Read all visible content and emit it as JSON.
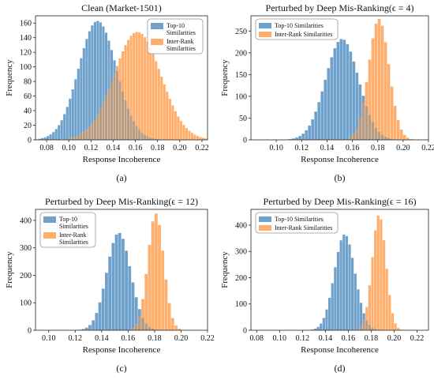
{
  "colors": {
    "top10": "#6fa1cd",
    "inter": "#ffae6b",
    "overlap": "#b89a7e"
  },
  "chart_data": [
    {
      "type": "histogram",
      "title": "Clean (Market-1501)",
      "xlabel": "Response Incoherence",
      "ylabel": "Frequency",
      "caption": "(a)",
      "xlim": [
        0.07,
        0.225
      ],
      "ylim": [
        0,
        170
      ],
      "xticks": [
        "0.08",
        "0.10",
        "0.12",
        "0.14",
        "0.16",
        "0.18",
        "0.20",
        "0.22"
      ],
      "yticks": [
        "0",
        "20",
        "40",
        "60",
        "80",
        "100",
        "120",
        "140",
        "160"
      ],
      "legend": {
        "position": "top-right",
        "entries": [
          "Top-10\nSimilarities",
          "Inter-Rank\nSimilarities"
        ]
      },
      "series": [
        {
          "name": "Top-10\nSimilarities",
          "mean": 0.126,
          "sd": 0.017,
          "peak": 163
        },
        {
          "name": "Inter-Rank\nSimilarities",
          "mean": 0.162,
          "sd": 0.021,
          "peak": 148
        }
      ]
    },
    {
      "type": "histogram",
      "title": "Perturbed by Deep Mis-Ranking(ϵ = 4)",
      "xlabel": "Response Incoherence",
      "ylabel": "Frequency",
      "caption": "(b)",
      "xlim": [
        0.08,
        0.22
      ],
      "ylim": [
        0,
        285
      ],
      "xticks": [
        "0.10",
        "0.12",
        "0.14",
        "0.16",
        "0.18",
        "0.20",
        "0.22"
      ],
      "yticks": [
        "0",
        "50",
        "100",
        "150",
        "200",
        "250"
      ],
      "legend": {
        "position": "top-left",
        "entries": [
          "Top-10 Similarities",
          "Inter-Rank Similarities"
        ]
      },
      "series": [
        {
          "name": "Top-10 Similarities",
          "mean": 0.152,
          "sd": 0.013,
          "peak": 232
        },
        {
          "name": "Inter-Rank Similarities",
          "mean": 0.181,
          "sd": 0.008,
          "peak": 278
        }
      ]
    },
    {
      "type": "histogram",
      "title": "Perturbed by Deep Mis-Ranking(ϵ = 12)",
      "xlabel": "Response Incoherence",
      "ylabel": "Frequency",
      "caption": "(c)",
      "xlim": [
        0.09,
        0.22
      ],
      "ylim": [
        0,
        440
      ],
      "xticks": [
        "0.10",
        "0.12",
        "0.14",
        "0.16",
        "0.18",
        "0.20",
        "0.22"
      ],
      "yticks": [
        "0",
        "100",
        "200",
        "300",
        "400"
      ],
      "legend": {
        "position": "top-left",
        "entries": [
          "Top-10\nSimilarities",
          "Inter-Rank\nSimilarities"
        ]
      },
      "series": [
        {
          "name": "Top-10\nSimilarities",
          "mean": 0.153,
          "sd": 0.009,
          "peak": 355
        },
        {
          "name": "Inter-Rank\nSimilarities",
          "mean": 0.181,
          "sd": 0.006,
          "peak": 425
        }
      ]
    },
    {
      "type": "histogram",
      "title": "Perturbed by Deep Mis-Ranking(ϵ = 16)",
      "xlabel": "Response Incoherence",
      "ylabel": "Frequency",
      "caption": "(d)",
      "xlim": [
        0.075,
        0.23
      ],
      "ylim": [
        0,
        460
      ],
      "xticks": [
        "0.08",
        "0.10",
        "0.12",
        "0.14",
        "0.16",
        "0.18",
        "0.20",
        "0.22"
      ],
      "yticks": [
        "0",
        "100",
        "200",
        "300",
        "400"
      ],
      "legend": {
        "position": "top-left",
        "entries": [
          "Top-10 Similarities",
          "Inter-Rank Similarities"
        ]
      },
      "series": [
        {
          "name": "Top-10 Similarities",
          "mean": 0.157,
          "sd": 0.009,
          "peak": 365
        },
        {
          "name": "Inter-Rank Similarities",
          "mean": 0.187,
          "sd": 0.006,
          "peak": 440
        }
      ]
    }
  ]
}
